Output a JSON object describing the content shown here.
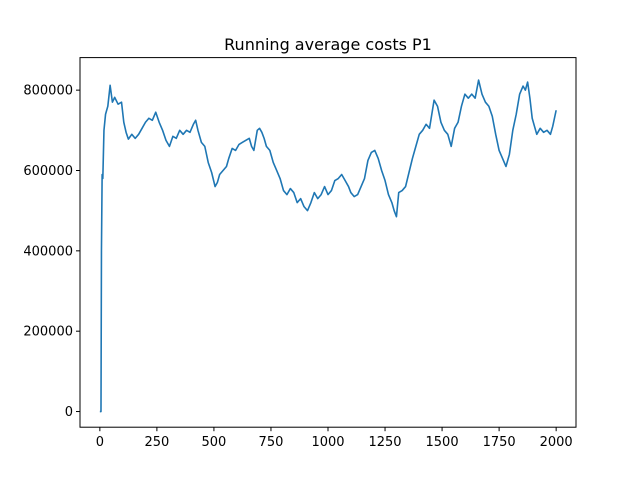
{
  "chart_data": {
    "type": "line",
    "title": "Running average costs P1",
    "xlabel": "",
    "ylabel": "",
    "xlim": [
      -87,
      2087
    ],
    "ylim": [
      -39000,
      881000
    ],
    "xticks": [
      0,
      250,
      500,
      750,
      1000,
      1250,
      1500,
      1750,
      2000
    ],
    "xtick_labels": [
      "0",
      "250",
      "500",
      "750",
      "1000",
      "1250",
      "1500",
      "1750",
      "2000"
    ],
    "yticks": [
      0,
      200000,
      400000,
      600000,
      800000
    ],
    "ytick_labels": [
      "0",
      "200000",
      "400000",
      "600000",
      "800000"
    ],
    "grid": false,
    "series": [
      {
        "color": "#1f77b4",
        "points": [
          [
            0,
            0
          ],
          [
            5,
            0
          ],
          [
            7,
            400000
          ],
          [
            10,
            590000
          ],
          [
            13,
            580000
          ],
          [
            18,
            700000
          ],
          [
            25,
            740000
          ],
          [
            35,
            760000
          ],
          [
            45,
            812000
          ],
          [
            55,
            770000
          ],
          [
            65,
            782000
          ],
          [
            80,
            765000
          ],
          [
            95,
            770000
          ],
          [
            105,
            720000
          ],
          [
            115,
            695000
          ],
          [
            125,
            678000
          ],
          [
            140,
            690000
          ],
          [
            155,
            680000
          ],
          [
            170,
            690000
          ],
          [
            185,
            705000
          ],
          [
            200,
            720000
          ],
          [
            215,
            730000
          ],
          [
            230,
            725000
          ],
          [
            245,
            745000
          ],
          [
            260,
            720000
          ],
          [
            275,
            700000
          ],
          [
            290,
            675000
          ],
          [
            305,
            660000
          ],
          [
            320,
            685000
          ],
          [
            335,
            680000
          ],
          [
            350,
            700000
          ],
          [
            365,
            690000
          ],
          [
            380,
            700000
          ],
          [
            395,
            695000
          ],
          [
            410,
            715000
          ],
          [
            420,
            725000
          ],
          [
            430,
            700000
          ],
          [
            445,
            670000
          ],
          [
            460,
            660000
          ],
          [
            475,
            620000
          ],
          [
            490,
            595000
          ],
          [
            505,
            560000
          ],
          [
            515,
            570000
          ],
          [
            525,
            590000
          ],
          [
            540,
            600000
          ],
          [
            555,
            610000
          ],
          [
            565,
            630000
          ],
          [
            580,
            655000
          ],
          [
            595,
            650000
          ],
          [
            610,
            665000
          ],
          [
            625,
            670000
          ],
          [
            640,
            675000
          ],
          [
            655,
            680000
          ],
          [
            665,
            660000
          ],
          [
            675,
            650000
          ],
          [
            690,
            700000
          ],
          [
            700,
            705000
          ],
          [
            710,
            695000
          ],
          [
            720,
            680000
          ],
          [
            730,
            660000
          ],
          [
            745,
            650000
          ],
          [
            760,
            620000
          ],
          [
            775,
            600000
          ],
          [
            790,
            580000
          ],
          [
            805,
            550000
          ],
          [
            820,
            540000
          ],
          [
            835,
            555000
          ],
          [
            850,
            545000
          ],
          [
            865,
            520000
          ],
          [
            880,
            530000
          ],
          [
            895,
            510000
          ],
          [
            910,
            500000
          ],
          [
            925,
            520000
          ],
          [
            940,
            545000
          ],
          [
            955,
            530000
          ],
          [
            970,
            540000
          ],
          [
            985,
            560000
          ],
          [
            1000,
            540000
          ],
          [
            1015,
            550000
          ],
          [
            1030,
            575000
          ],
          [
            1045,
            580000
          ],
          [
            1060,
            590000
          ],
          [
            1075,
            575000
          ],
          [
            1090,
            560000
          ],
          [
            1100,
            545000
          ],
          [
            1115,
            535000
          ],
          [
            1130,
            540000
          ],
          [
            1145,
            560000
          ],
          [
            1160,
            580000
          ],
          [
            1175,
            625000
          ],
          [
            1190,
            645000
          ],
          [
            1205,
            650000
          ],
          [
            1220,
            630000
          ],
          [
            1235,
            600000
          ],
          [
            1250,
            575000
          ],
          [
            1265,
            540000
          ],
          [
            1280,
            520000
          ],
          [
            1290,
            500000
          ],
          [
            1300,
            485000
          ],
          [
            1310,
            545000
          ],
          [
            1325,
            550000
          ],
          [
            1340,
            560000
          ],
          [
            1355,
            595000
          ],
          [
            1370,
            630000
          ],
          [
            1385,
            660000
          ],
          [
            1400,
            690000
          ],
          [
            1415,
            700000
          ],
          [
            1430,
            715000
          ],
          [
            1445,
            705000
          ],
          [
            1455,
            740000
          ],
          [
            1465,
            775000
          ],
          [
            1480,
            760000
          ],
          [
            1495,
            720000
          ],
          [
            1510,
            700000
          ],
          [
            1525,
            690000
          ],
          [
            1540,
            660000
          ],
          [
            1555,
            705000
          ],
          [
            1570,
            720000
          ],
          [
            1585,
            760000
          ],
          [
            1600,
            790000
          ],
          [
            1615,
            780000
          ],
          [
            1630,
            790000
          ],
          [
            1645,
            780000
          ],
          [
            1660,
            825000
          ],
          [
            1675,
            790000
          ],
          [
            1690,
            770000
          ],
          [
            1705,
            760000
          ],
          [
            1720,
            735000
          ],
          [
            1735,
            690000
          ],
          [
            1750,
            650000
          ],
          [
            1765,
            630000
          ],
          [
            1780,
            610000
          ],
          [
            1795,
            640000
          ],
          [
            1810,
            700000
          ],
          [
            1825,
            740000
          ],
          [
            1840,
            790000
          ],
          [
            1855,
            810000
          ],
          [
            1865,
            800000
          ],
          [
            1875,
            820000
          ],
          [
            1885,
            780000
          ],
          [
            1895,
            730000
          ],
          [
            1905,
            710000
          ],
          [
            1915,
            690000
          ],
          [
            1930,
            705000
          ],
          [
            1945,
            695000
          ],
          [
            1960,
            700000
          ],
          [
            1975,
            690000
          ],
          [
            1985,
            710000
          ],
          [
            2000,
            750000
          ]
        ]
      }
    ]
  }
}
